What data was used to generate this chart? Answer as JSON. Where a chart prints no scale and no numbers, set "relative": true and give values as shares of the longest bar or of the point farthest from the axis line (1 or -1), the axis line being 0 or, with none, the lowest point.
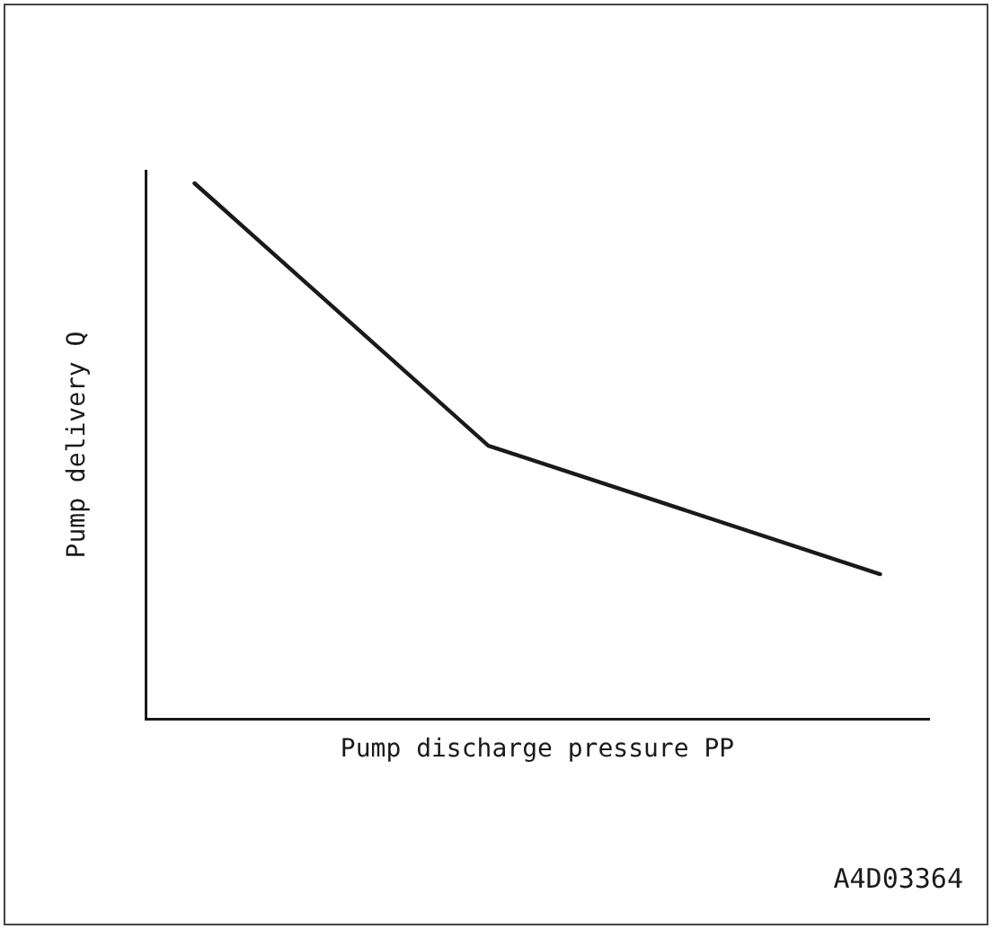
{
  "chart_data": {
    "type": "line",
    "relative": true,
    "xlabel": "Pump discharge pressure PP",
    "ylabel": "Pump delivery Q",
    "categories": [
      null,
      null,
      null,
      null,
      null,
      null,
      null,
      null
    ],
    "grid": false,
    "legend": false,
    "marker": "none",
    "line_style": "solid",
    "series": [
      {
        "color": "#1a1a1a",
        "values": [
          1,
          null,
          null,
          0.51,
          null,
          null,
          null,
          0.27
        ]
      }
    ],
    "annotations": [
      "A4D03364"
    ]
  }
}
